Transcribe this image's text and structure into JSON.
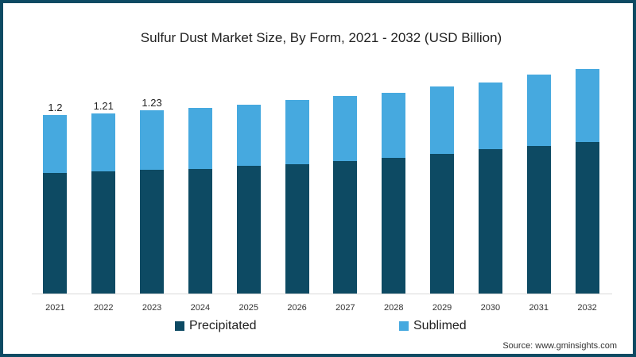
{
  "chart_data": {
    "type": "bar",
    "stacked": true,
    "title": "Sulfur Dust Market Size, By Form, 2021 - 2032 (USD Billion)",
    "xlabel": "",
    "ylabel": "",
    "categories": [
      "2021",
      "2022",
      "2023",
      "2024",
      "2025",
      "2026",
      "2027",
      "2028",
      "2029",
      "2030",
      "2031",
      "2032"
    ],
    "series": [
      {
        "name": "Precipitated",
        "color": "#0d4a63",
        "values": [
          0.81,
          0.82,
          0.83,
          0.84,
          0.86,
          0.87,
          0.89,
          0.91,
          0.94,
          0.97,
          0.99,
          1.02
        ]
      },
      {
        "name": "Sublimed",
        "color": "#46a9df",
        "values": [
          0.39,
          0.39,
          0.4,
          0.41,
          0.41,
          0.43,
          0.44,
          0.44,
          0.45,
          0.45,
          0.48,
          0.49
        ]
      }
    ],
    "totals": [
      1.2,
      1.21,
      1.23,
      1.25,
      1.27,
      1.3,
      1.33,
      1.35,
      1.39,
      1.42,
      1.47,
      1.51
    ],
    "data_labels": {
      "2021": "1.2",
      "2022": "1.21",
      "2023": "1.23"
    },
    "legend_position": "bottom",
    "grid": false,
    "ylim": [
      0,
      1.58
    ]
  },
  "title": "Sulfur Dust Market Size, By Form, 2021 - 2032 (USD Billion)",
  "legend": {
    "precipitated": "Precipitated",
    "sublimed": "Sublimed"
  },
  "source": "Source: www.gminsights.com",
  "colors": {
    "precipitated": "#0d4a63",
    "sublimed": "#46a9df",
    "frame": "#0d4a63"
  }
}
